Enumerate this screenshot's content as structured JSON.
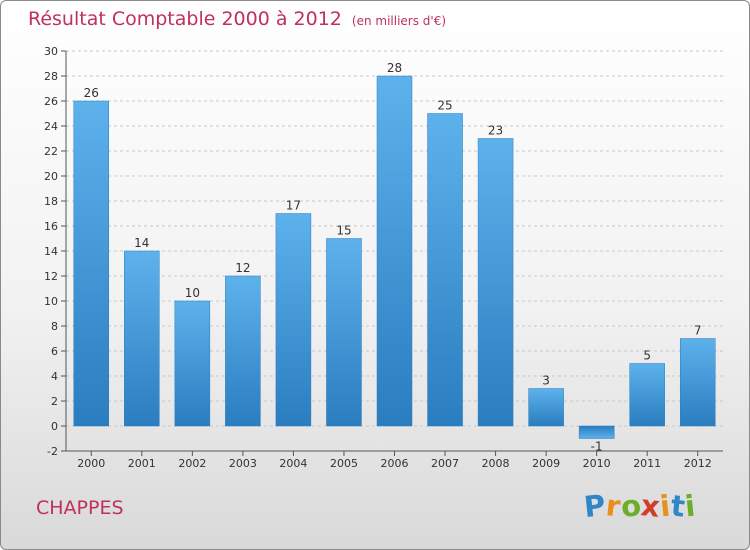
{
  "chart_data": {
    "type": "bar",
    "title": "Résultat Comptable 2000 à 2012",
    "subtitle": "(en milliers d'€)",
    "categories": [
      "2000",
      "2001",
      "2002",
      "2003",
      "2004",
      "2005",
      "2006",
      "2007",
      "2008",
      "2009",
      "2010",
      "2011",
      "2012"
    ],
    "values": [
      26,
      14,
      10,
      12,
      17,
      15,
      28,
      25,
      23,
      3,
      -1,
      5,
      7
    ],
    "ylim": [
      -2,
      30
    ],
    "yticks": [
      -2,
      0,
      2,
      4,
      6,
      8,
      10,
      12,
      14,
      16,
      18,
      20,
      22,
      24,
      26,
      28,
      30
    ],
    "grid": true,
    "bar_color": "#3d9ad9",
    "title_color": "#c0305a"
  },
  "footer": {
    "city": "CHAPPES",
    "logo_letters": [
      "P",
      "r",
      "o",
      "x",
      "i",
      "t",
      "i"
    ],
    "logo_colors": [
      "#2f86c8",
      "#e98f1c",
      "#6cae2c",
      "#d23c2a",
      "#e98f1c",
      "#2f86c8",
      "#6cae2c"
    ]
  }
}
